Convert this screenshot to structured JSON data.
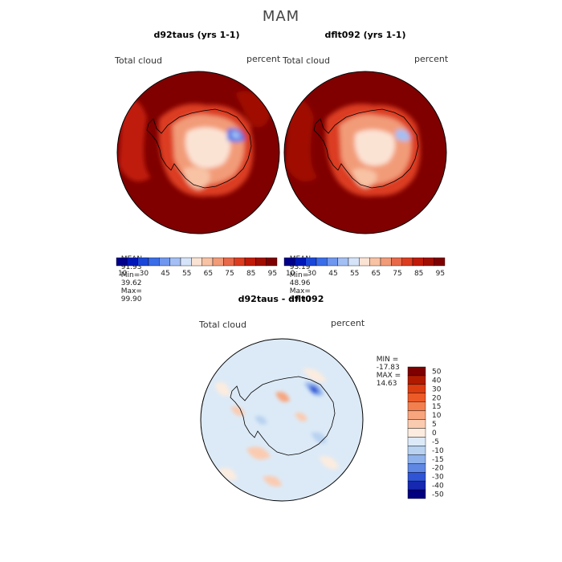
{
  "page": {
    "season_title": "MAM"
  },
  "panels": [
    {
      "title": "d92taus (yrs 1-1)",
      "variable_label": "Total cloud",
      "units_label": "percent",
      "mean_label": "MEAN=",
      "mean_value": "91.93",
      "min_label": "Min=",
      "min_value": "39.62",
      "max_label": "Max=",
      "max_value": "99.90"
    },
    {
      "title": "dflt092 (yrs 1-1)",
      "variable_label": "Total cloud",
      "units_label": "percent",
      "mean_label": "MEAN=",
      "mean_value": "93.19",
      "min_label": "Min=",
      "min_value": "48.96",
      "max_label": "Max=",
      "max_value": "99.90"
    }
  ],
  "abs_colorbar": {
    "tick_labels": [
      "10",
      "30",
      "45",
      "55",
      "65",
      "75",
      "85",
      "95"
    ],
    "colors": [
      "#00008b",
      "#0018b8",
      "#1a47d8",
      "#3a6de8",
      "#6f97ef",
      "#a3bff4",
      "#d6e4f9",
      "#fbe3d4",
      "#f8c2a4",
      "#f29b78",
      "#e8694a",
      "#dc3d20",
      "#c01a08",
      "#a00e00",
      "#7f0000"
    ]
  },
  "diff_panel": {
    "title": "d92taus - dflt092",
    "variable_label": "Total cloud",
    "units_label": "percent",
    "min_label": "MIN =",
    "min_value": "-17.83",
    "max_label": "MAX =",
    "max_value": "14.63"
  },
  "diff_colorbar": {
    "tick_labels": [
      "50",
      "40",
      "30",
      "20",
      "15",
      "10",
      "5",
      "0",
      "-5",
      "-10",
      "-15",
      "-20",
      "-30",
      "-40",
      "-50"
    ],
    "colors": [
      "#7f0000",
      "#b01b00",
      "#dc3d10",
      "#ec5a28",
      "#f37f4f",
      "#f8a57e",
      "#fbcbb0",
      "#fcecdf",
      "#dceaf7",
      "#b8d2f0",
      "#8fb2ec",
      "#5f88e4",
      "#2f55d6",
      "#1628b0",
      "#000080"
    ]
  }
}
